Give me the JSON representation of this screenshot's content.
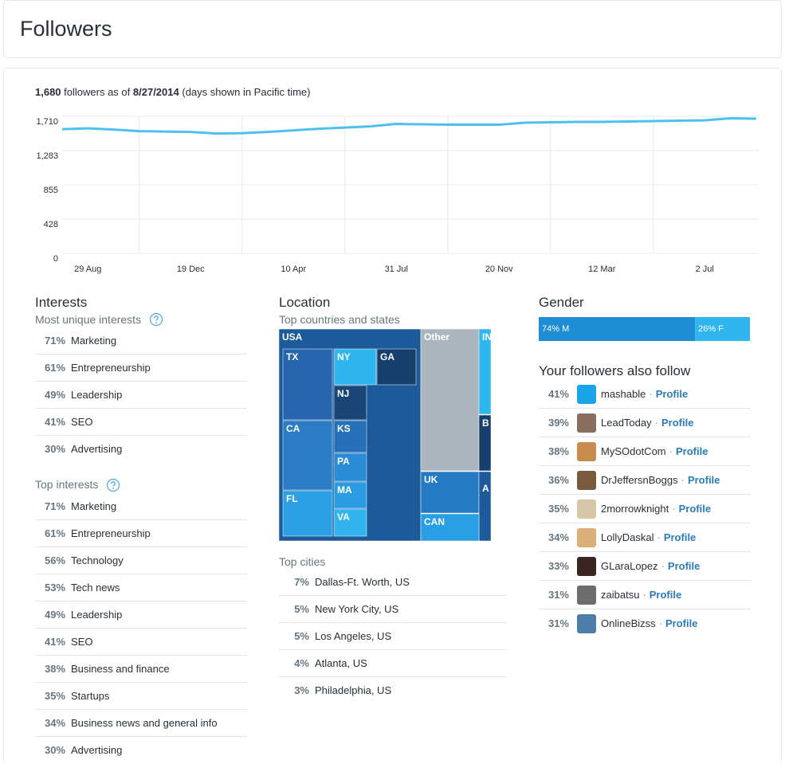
{
  "header": {
    "title": "Followers"
  },
  "summary": {
    "count": "1,680",
    "text": "followers as of",
    "date": "8/27/2014",
    "note": "(days shown in Pacific time)"
  },
  "chart_data": {
    "type": "line",
    "categories": [
      null,
      "29 Aug",
      null,
      null,
      null,
      "19 Dec",
      null,
      null,
      null,
      "10 Apr",
      null,
      null,
      null,
      "31 Jul",
      null,
      null,
      null,
      "20 Nov",
      null,
      null,
      null,
      "12 Mar",
      null,
      null,
      null,
      "2 Jul",
      null,
      null
    ],
    "series": [
      {
        "name": "Followers",
        "color": "#4cc0ee",
        "values": [
          1550,
          1560,
          1545,
          1525,
          1520,
          1515,
          1495,
          1500,
          1515,
          1535,
          1555,
          1570,
          1585,
          1615,
          1610,
          1605,
          1605,
          1605,
          1630,
          1635,
          1640,
          1640,
          1645,
          1650,
          1655,
          1660,
          1685,
          1680
        ]
      }
    ],
    "ylim": [
      0,
      1710
    ],
    "yticks": [
      0,
      428,
      855,
      {
        "value": 1283,
        "label": "1,283"
      },
      {
        "value": 1710,
        "label": "1,710"
      }
    ],
    "grid": true
  },
  "interests": {
    "title": "Interests",
    "unique": {
      "title": "Most unique interests",
      "items": [
        {
          "pct": "71%",
          "name": "Marketing"
        },
        {
          "pct": "61%",
          "name": "Entrepreneurship"
        },
        {
          "pct": "49%",
          "name": "Leadership"
        },
        {
          "pct": "41%",
          "name": "SEO"
        },
        {
          "pct": "30%",
          "name": "Advertising"
        }
      ]
    },
    "top": {
      "title": "Top interests",
      "items": [
        {
          "pct": "71%",
          "name": "Marketing"
        },
        {
          "pct": "61%",
          "name": "Entrepreneurship"
        },
        {
          "pct": "56%",
          "name": "Technology"
        },
        {
          "pct": "53%",
          "name": "Tech news"
        },
        {
          "pct": "49%",
          "name": "Leadership"
        },
        {
          "pct": "41%",
          "name": "SEO"
        },
        {
          "pct": "38%",
          "name": "Business and finance"
        },
        {
          "pct": "35%",
          "name": "Startups"
        },
        {
          "pct": "34%",
          "name": "Business news and general info"
        },
        {
          "pct": "30%",
          "name": "Advertising"
        }
      ]
    }
  },
  "location": {
    "title": "Location",
    "subtitle": "Top countries and states",
    "cells": [
      "USA",
      "TX",
      "NY",
      "GA",
      "NJ",
      "CA",
      "KS",
      "PA",
      "MA",
      "FL",
      "VA",
      "Other",
      "IN",
      "B",
      "UK",
      "A",
      "CAN"
    ],
    "cities": {
      "title": "Top cities",
      "items": [
        {
          "pct": "7%",
          "name": "Dallas-Ft. Worth, US"
        },
        {
          "pct": "5%",
          "name": "New York City, US"
        },
        {
          "pct": "5%",
          "name": "Los Angeles, US"
        },
        {
          "pct": "4%",
          "name": "Atlanta, US"
        },
        {
          "pct": "3%",
          "name": "Philadelphia, US"
        }
      ]
    }
  },
  "gender": {
    "title": "Gender",
    "segments": [
      {
        "value": 74,
        "label": "74% M",
        "color": "#1f8dd6"
      },
      {
        "value": 26,
        "label": "26% F",
        "color": "#30b6ee"
      }
    ]
  },
  "also_follow": {
    "title": "Your followers also follow",
    "separator": "·",
    "link_label": "Profile",
    "items": [
      {
        "pct": "41%",
        "name": "mashable"
      },
      {
        "pct": "39%",
        "name": "LeadToday"
      },
      {
        "pct": "38%",
        "name": "MySOdotCom"
      },
      {
        "pct": "36%",
        "name": "DrJeffersnBoggs"
      },
      {
        "pct": "35%",
        "name": "2morrowknight"
      },
      {
        "pct": "34%",
        "name": "LollyDaskal"
      },
      {
        "pct": "33%",
        "name": "GLaraLopez"
      },
      {
        "pct": "31%",
        "name": "zaibatsu"
      },
      {
        "pct": "31%",
        "name": "OnlineBizss"
      }
    ]
  }
}
